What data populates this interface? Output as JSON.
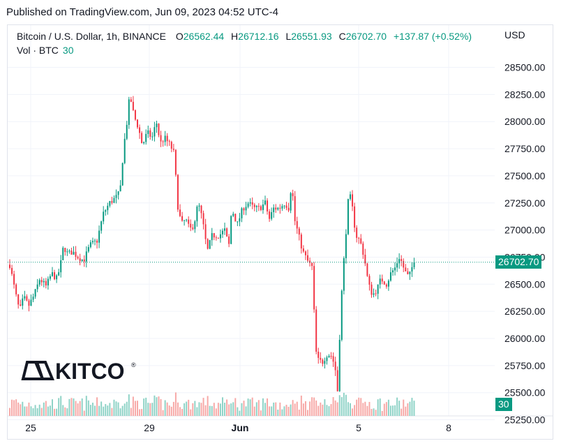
{
  "header": {
    "published": "Published on TradingView.com, Jun 09, 2023 04:52 UTC-4"
  },
  "legend": {
    "symbol": "Bitcoin / U.S. Dollar, 1h, BINANCE",
    "open_label": "O",
    "open": "26562.44",
    "high_label": "H",
    "high": "26712.16",
    "low_label": "L",
    "low": "26551.93",
    "close_label": "C",
    "close": "26702.70",
    "change": "+137.87 (+0.52%)"
  },
  "volume_legend": {
    "label": "Vol · BTC",
    "value": "30"
  },
  "axis": {
    "currency": "USD"
  },
  "last_price_tag": "26702.70",
  "volume_tag": "30",
  "watermark": {
    "text": "KITCO"
  },
  "colors": {
    "up": "#089981",
    "down": "#f23645",
    "up_vol": "#8fd3c7",
    "down_vol": "#f7a9a7",
    "grid": "#f0f3fa",
    "text": "#131722"
  },
  "chart_data": {
    "type": "candlestick",
    "title": "Bitcoin / U.S. Dollar, 1h, BINANCE",
    "currency": "USD",
    "ylim": [
      25350,
      28600
    ],
    "y_ticks": [
      "28500.00",
      "28250.00",
      "28000.00",
      "27750.00",
      "27500.00",
      "27250.00",
      "27000.00",
      "26750.00",
      "26500.00",
      "26250.00",
      "26000.00",
      "25750.00",
      "25500.00",
      "25250.00"
    ],
    "x_ticks": [
      "25",
      "29",
      "Jun",
      "5",
      "8"
    ],
    "last_close": 26702.7,
    "close_path": [
      {
        "x": 0,
        "y": 26680
      },
      {
        "x": 8,
        "y": 26420
      },
      {
        "x": 14,
        "y": 26250
      },
      {
        "x": 20,
        "y": 26380
      },
      {
        "x": 27,
        "y": 26300
      },
      {
        "x": 35,
        "y": 26400
      },
      {
        "x": 43,
        "y": 26550
      },
      {
        "x": 52,
        "y": 26480
      },
      {
        "x": 60,
        "y": 26600
      },
      {
        "x": 67,
        "y": 26550
      },
      {
        "x": 72,
        "y": 26650
      },
      {
        "x": 77,
        "y": 26850
      },
      {
        "x": 83,
        "y": 26780
      },
      {
        "x": 90,
        "y": 26800
      },
      {
        "x": 98,
        "y": 26750
      },
      {
        "x": 106,
        "y": 26720
      },
      {
        "x": 115,
        "y": 26860
      },
      {
        "x": 125,
        "y": 26900
      },
      {
        "x": 134,
        "y": 27150
      },
      {
        "x": 143,
        "y": 27250
      },
      {
        "x": 152,
        "y": 27300
      },
      {
        "x": 158,
        "y": 27350
      },
      {
        "x": 163,
        "y": 27750
      },
      {
        "x": 168,
        "y": 28000
      },
      {
        "x": 172,
        "y": 28250
      },
      {
        "x": 178,
        "y": 28050
      },
      {
        "x": 184,
        "y": 27950
      },
      {
        "x": 190,
        "y": 27780
      },
      {
        "x": 197,
        "y": 27900
      },
      {
        "x": 204,
        "y": 27850
      },
      {
        "x": 210,
        "y": 28000
      },
      {
        "x": 216,
        "y": 27800
      },
      {
        "x": 222,
        "y": 27850
      },
      {
        "x": 230,
        "y": 27780
      },
      {
        "x": 236,
        "y": 27700
      },
      {
        "x": 240,
        "y": 27250
      },
      {
        "x": 246,
        "y": 27050
      },
      {
        "x": 252,
        "y": 27100
      },
      {
        "x": 258,
        "y": 27000
      },
      {
        "x": 264,
        "y": 27050
      },
      {
        "x": 270,
        "y": 27250
      },
      {
        "x": 276,
        "y": 27100
      },
      {
        "x": 283,
        "y": 26800
      },
      {
        "x": 290,
        "y": 26950
      },
      {
        "x": 300,
        "y": 26950
      },
      {
        "x": 308,
        "y": 27000
      },
      {
        "x": 314,
        "y": 26850
      },
      {
        "x": 318,
        "y": 27200
      },
      {
        "x": 326,
        "y": 27050
      },
      {
        "x": 334,
        "y": 27200
      },
      {
        "x": 342,
        "y": 27250
      },
      {
        "x": 350,
        "y": 27200
      },
      {
        "x": 358,
        "y": 27200
      },
      {
        "x": 366,
        "y": 27250
      },
      {
        "x": 372,
        "y": 27100
      },
      {
        "x": 378,
        "y": 27200
      },
      {
        "x": 386,
        "y": 27200
      },
      {
        "x": 394,
        "y": 27250
      },
      {
        "x": 400,
        "y": 27200
      },
      {
        "x": 404,
        "y": 27450
      },
      {
        "x": 408,
        "y": 27100
      },
      {
        "x": 414,
        "y": 26950
      },
      {
        "x": 420,
        "y": 26800
      },
      {
        "x": 428,
        "y": 26700
      },
      {
        "x": 434,
        "y": 26650
      },
      {
        "x": 438,
        "y": 25900
      },
      {
        "x": 442,
        "y": 25800
      },
      {
        "x": 448,
        "y": 25780
      },
      {
        "x": 454,
        "y": 25850
      },
      {
        "x": 460,
        "y": 25850
      },
      {
        "x": 466,
        "y": 25750
      },
      {
        "x": 470,
        "y": 25500
      },
      {
        "x": 474,
        "y": 26250
      },
      {
        "x": 478,
        "y": 26650
      },
      {
        "x": 482,
        "y": 27000
      },
      {
        "x": 486,
        "y": 27350
      },
      {
        "x": 490,
        "y": 27250
      },
      {
        "x": 496,
        "y": 26950
      },
      {
        "x": 502,
        "y": 26900
      },
      {
        "x": 508,
        "y": 26750
      },
      {
        "x": 514,
        "y": 26500
      },
      {
        "x": 520,
        "y": 26400
      },
      {
        "x": 526,
        "y": 26450
      },
      {
        "x": 532,
        "y": 26550
      },
      {
        "x": 540,
        "y": 26500
      },
      {
        "x": 546,
        "y": 26600
      },
      {
        "x": 552,
        "y": 26650
      },
      {
        "x": 558,
        "y": 26750
      },
      {
        "x": 562,
        "y": 26700
      },
      {
        "x": 566,
        "y": 26620
      },
      {
        "x": 572,
        "y": 26560
      },
      {
        "x": 576,
        "y": 26650
      },
      {
        "x": 582,
        "y": 26702.7
      }
    ]
  }
}
